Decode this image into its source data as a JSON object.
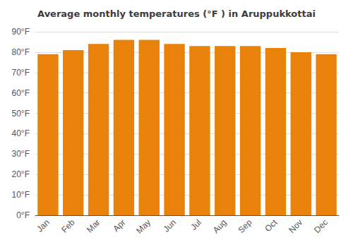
{
  "chart_data": {
    "type": "bar",
    "title": "Average monthly temperatures (°F ) in Aruppukkottai",
    "categories": [
      "Jan",
      "Feb",
      "Mar",
      "Apr",
      "May",
      "Jun",
      "Jul",
      "Aug",
      "Sep",
      "Oct",
      "Nov",
      "Dec"
    ],
    "values": [
      79,
      81,
      84,
      86,
      86,
      84,
      83,
      83,
      83,
      82,
      80,
      79
    ],
    "color": "#E8820A",
    "ylim": [
      0,
      90
    ],
    "yticks": [
      {
        "value": 0,
        "label": "0°F"
      },
      {
        "value": 10,
        "label": "10°F"
      },
      {
        "value": 20,
        "label": "20°F"
      },
      {
        "value": 30,
        "label": "30°F"
      },
      {
        "value": 40,
        "label": "40°F"
      },
      {
        "value": 50,
        "label": "50°F"
      },
      {
        "value": 60,
        "label": "60°F"
      },
      {
        "value": 70,
        "label": "70°F"
      },
      {
        "value": 80,
        "label": "80°F"
      },
      {
        "value": 90,
        "label": "90°F"
      }
    ],
    "grid": true
  }
}
